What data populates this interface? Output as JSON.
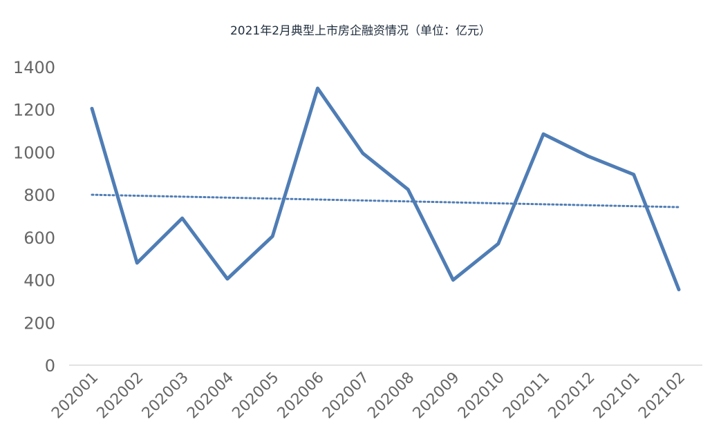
{
  "chart_data": {
    "type": "line",
    "title": "2021年2月典型上市房企融资情况（单位：亿元）",
    "xlabel": "",
    "ylabel": "",
    "categories": [
      "202001",
      "202002",
      "202003",
      "202004",
      "202005",
      "202006",
      "202007",
      "202008",
      "202009",
      "202010",
      "202011",
      "202012",
      "202101",
      "202102"
    ],
    "series": [
      {
        "values": [
          1205,
          480,
          690,
          405,
          605,
          1300,
          995,
          825,
          400,
          570,
          1085,
          980,
          895,
          355
        ],
        "color": "#4f7db5"
      }
    ],
    "trendline": {
      "style": "dotted",
      "color": "#4f7db5",
      "start": 800,
      "end": 742
    },
    "ylim": [
      0,
      1400
    ],
    "yticks": [
      0,
      200,
      400,
      600,
      800,
      1000,
      1200,
      1400
    ],
    "grid": false,
    "legend": "none"
  }
}
